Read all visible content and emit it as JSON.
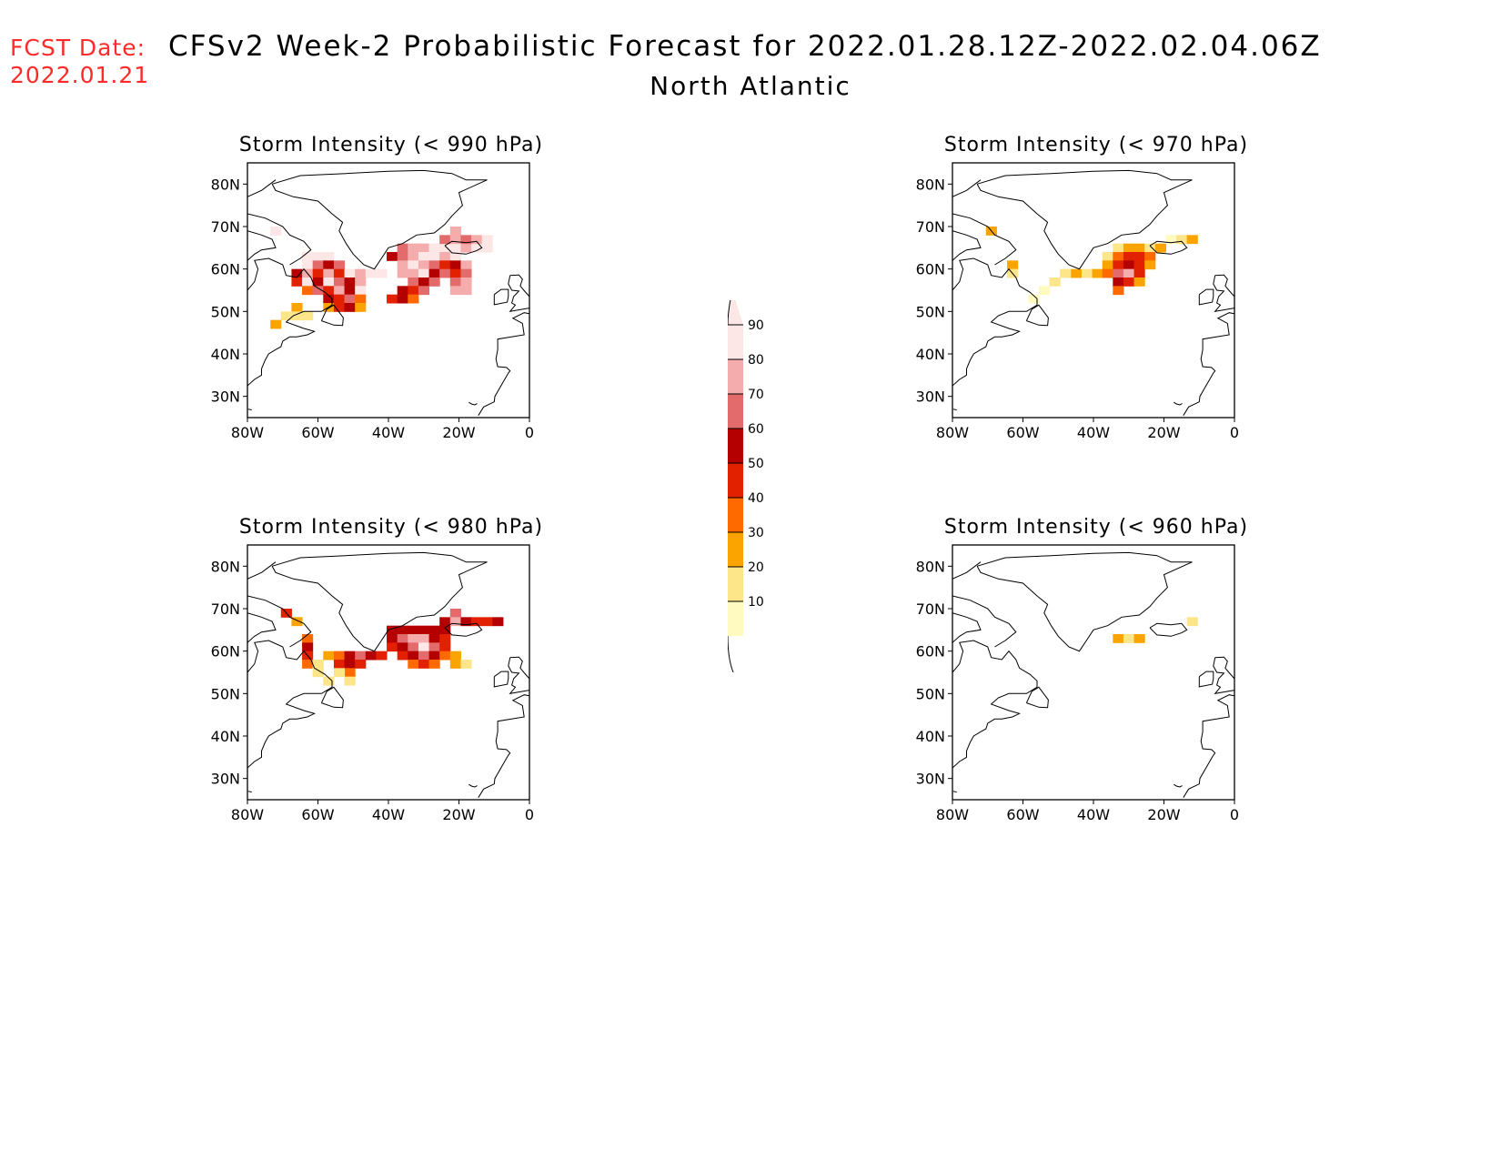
{
  "forecast_date_label": "FCST Date:",
  "forecast_date": "2022.01.21",
  "title": "CFSv2 Week-2 Probabilistic Forecast for 2022.01.28.12Z-2022.02.04.06Z",
  "region": "North Atlantic",
  "colors": [
    "#fffac0",
    "#fde58a",
    "#fba400",
    "#ff6a00",
    "#e22100",
    "#b40000",
    "#e36b6b",
    "#f4acac",
    "#fde6e6"
  ],
  "colorbar": {
    "levels": [
      "10",
      "20",
      "30",
      "40",
      "50",
      "60",
      "70",
      "80",
      "90"
    ]
  },
  "axes": {
    "lat_labels": [
      "80N",
      "70N",
      "60N",
      "50N",
      "40N",
      "30N"
    ],
    "lon_labels": [
      "80W",
      "60W",
      "40W",
      "20W",
      "0"
    ]
  },
  "panels": [
    {
      "id": "p990",
      "title": "Storm Intensity (< 990 hPa)",
      "cells": [
        [
          -63,
          63,
          9
        ],
        [
          -60,
          63,
          9
        ],
        [
          -57,
          63,
          9
        ],
        [
          -63,
          61,
          9
        ],
        [
          -60,
          61,
          7
        ],
        [
          -57,
          61,
          6
        ],
        [
          -54,
          61,
          7
        ],
        [
          -66,
          59,
          6
        ],
        [
          -63,
          59,
          8
        ],
        [
          -60,
          59,
          5
        ],
        [
          -57,
          59,
          8
        ],
        [
          -54,
          59,
          5
        ],
        [
          -51,
          59,
          9
        ],
        [
          -48,
          59,
          8
        ],
        [
          -45,
          59,
          9
        ],
        [
          -42,
          59,
          9
        ],
        [
          -66,
          57,
          5
        ],
        [
          -63,
          57,
          9
        ],
        [
          -60,
          57,
          6
        ],
        [
          -57,
          57,
          9
        ],
        [
          -54,
          57,
          7
        ],
        [
          -51,
          57,
          6
        ],
        [
          -48,
          57,
          8
        ],
        [
          -63,
          55,
          4
        ],
        [
          -60,
          55,
          7
        ],
        [
          -57,
          55,
          5
        ],
        [
          -54,
          55,
          8
        ],
        [
          -51,
          55,
          6
        ],
        [
          -48,
          55,
          9
        ],
        [
          -57,
          53,
          6
        ],
        [
          -54,
          53,
          5
        ],
        [
          -51,
          53,
          7
        ],
        [
          -48,
          53,
          4
        ],
        [
          -57,
          51,
          3
        ],
        [
          -54,
          51,
          5
        ],
        [
          -51,
          51,
          6
        ],
        [
          -48,
          51,
          3
        ],
        [
          -66,
          51,
          3
        ],
        [
          -69,
          49,
          2
        ],
        [
          -72,
          47,
          3
        ],
        [
          -63,
          49,
          2
        ],
        [
          -66,
          49,
          2
        ],
        [
          -36,
          65,
          7
        ],
        [
          -33,
          65,
          8
        ],
        [
          -30,
          65,
          8
        ],
        [
          -27,
          65,
          9
        ],
        [
          -24,
          65,
          9
        ],
        [
          -21,
          65,
          9
        ],
        [
          -18,
          65,
          8
        ],
        [
          -15,
          65,
          9
        ],
        [
          -12,
          65,
          9
        ],
        [
          -39,
          63,
          6
        ],
        [
          -36,
          63,
          7
        ],
        [
          -33,
          63,
          8
        ],
        [
          -30,
          63,
          9
        ],
        [
          -27,
          63,
          9
        ],
        [
          -24,
          63,
          8
        ],
        [
          -21,
          63,
          9
        ],
        [
          -36,
          61,
          8
        ],
        [
          -33,
          61,
          9
        ],
        [
          -30,
          61,
          8
        ],
        [
          -27,
          61,
          7
        ],
        [
          -24,
          61,
          5
        ],
        [
          -21,
          61,
          6
        ],
        [
          -18,
          61,
          8
        ],
        [
          -36,
          59,
          8
        ],
        [
          -33,
          59,
          8
        ],
        [
          -30,
          59,
          9
        ],
        [
          -27,
          59,
          6
        ],
        [
          -24,
          59,
          7
        ],
        [
          -21,
          59,
          5
        ],
        [
          -18,
          59,
          7
        ],
        [
          -33,
          57,
          7
        ],
        [
          -30,
          57,
          6
        ],
        [
          -27,
          57,
          7
        ],
        [
          -21,
          57,
          7
        ],
        [
          -18,
          57,
          8
        ],
        [
          -36,
          55,
          6
        ],
        [
          -33,
          55,
          5
        ],
        [
          -30,
          55,
          7
        ],
        [
          -21,
          55,
          8
        ],
        [
          -18,
          55,
          8
        ],
        [
          -39,
          53,
          5
        ],
        [
          -36,
          53,
          6
        ],
        [
          -33,
          53,
          4
        ],
        [
          -21,
          69,
          8
        ],
        [
          -24,
          67,
          7
        ],
        [
          -21,
          67,
          8
        ],
        [
          -18,
          67,
          7
        ],
        [
          -15,
          67,
          8
        ],
        [
          -12,
          67,
          9
        ],
        [
          -72,
          69,
          9
        ]
      ]
    },
    {
      "id": "p970",
      "title": "Storm Intensity (< 970 hPa)",
      "cells": [
        [
          -33,
          65,
          2
        ],
        [
          -30,
          65,
          3
        ],
        [
          -27,
          65,
          3
        ],
        [
          -24,
          65,
          2
        ],
        [
          -21,
          65,
          3
        ],
        [
          -36,
          63,
          2
        ],
        [
          -33,
          63,
          4
        ],
        [
          -30,
          63,
          5
        ],
        [
          -27,
          63,
          5
        ],
        [
          -24,
          63,
          4
        ],
        [
          -36,
          61,
          3
        ],
        [
          -33,
          61,
          5
        ],
        [
          -30,
          61,
          6
        ],
        [
          -27,
          61,
          5
        ],
        [
          -24,
          61,
          3
        ],
        [
          -39,
          59,
          3
        ],
        [
          -36,
          59,
          4
        ],
        [
          -33,
          59,
          7
        ],
        [
          -30,
          59,
          8
        ],
        [
          -27,
          59,
          5
        ],
        [
          -33,
          57,
          6
        ],
        [
          -30,
          57,
          5
        ],
        [
          -27,
          57,
          3
        ],
        [
          -33,
          55,
          4
        ],
        [
          -42,
          59,
          2
        ],
        [
          -45,
          59,
          3
        ],
        [
          -48,
          59,
          2
        ],
        [
          -51,
          57,
          2
        ],
        [
          -54,
          55,
          1
        ],
        [
          -57,
          53,
          1
        ],
        [
          -63,
          61,
          3
        ],
        [
          -63,
          59,
          2
        ],
        [
          -69,
          69,
          3
        ],
        [
          -18,
          67,
          1
        ],
        [
          -15,
          67,
          2
        ],
        [
          -12,
          67,
          3
        ]
      ]
    },
    {
      "id": "p980",
      "title": "Storm Intensity (< 980 hPa)",
      "cells": [
        [
          -63,
          63,
          4
        ],
        [
          -63,
          61,
          6
        ],
        [
          -63,
          59,
          5
        ],
        [
          -63,
          57,
          4
        ],
        [
          -60,
          57,
          2
        ],
        [
          -57,
          53,
          2
        ],
        [
          -60,
          55,
          2
        ],
        [
          -57,
          59,
          3
        ],
        [
          -54,
          59,
          4
        ],
        [
          -51,
          59,
          6
        ],
        [
          -48,
          59,
          7
        ],
        [
          -45,
          59,
          6
        ],
        [
          -42,
          59,
          5
        ],
        [
          -54,
          57,
          5
        ],
        [
          -51,
          57,
          6
        ],
        [
          -48,
          57,
          5
        ],
        [
          -51,
          55,
          4
        ],
        [
          -51,
          53,
          2
        ],
        [
          -54,
          55,
          2
        ],
        [
          -39,
          65,
          6
        ],
        [
          -36,
          65,
          6
        ],
        [
          -33,
          65,
          6
        ],
        [
          -30,
          65,
          6
        ],
        [
          -27,
          65,
          6
        ],
        [
          -24,
          65,
          6
        ],
        [
          -39,
          63,
          6
        ],
        [
          -36,
          63,
          7
        ],
        [
          -33,
          63,
          8
        ],
        [
          -30,
          63,
          8
        ],
        [
          -27,
          63,
          6
        ],
        [
          -24,
          63,
          5
        ],
        [
          -39,
          61,
          5
        ],
        [
          -36,
          61,
          6
        ],
        [
          -33,
          61,
          7
        ],
        [
          -30,
          61,
          9
        ],
        [
          -27,
          61,
          7
        ],
        [
          -24,
          61,
          5
        ],
        [
          -36,
          59,
          5
        ],
        [
          -33,
          59,
          6
        ],
        [
          -30,
          59,
          7
        ],
        [
          -27,
          59,
          6
        ],
        [
          -24,
          59,
          4
        ],
        [
          -21,
          59,
          3
        ],
        [
          -33,
          57,
          4
        ],
        [
          -30,
          57,
          5
        ],
        [
          -27,
          57,
          4
        ],
        [
          -21,
          57,
          3
        ],
        [
          -18,
          57,
          2
        ],
        [
          -21,
          69,
          7
        ],
        [
          -24,
          67,
          6
        ],
        [
          -21,
          67,
          8
        ],
        [
          -18,
          67,
          6
        ],
        [
          -15,
          67,
          5
        ],
        [
          -12,
          67,
          5
        ],
        [
          -9,
          67,
          6
        ],
        [
          -69,
          69,
          5
        ],
        [
          -66,
          67,
          3
        ]
      ]
    },
    {
      "id": "p960",
      "title": "Storm Intensity (< 960 hPa)",
      "cells": [
        [
          -33,
          63,
          3
        ],
        [
          -30,
          63,
          2
        ],
        [
          -27,
          63,
          3
        ],
        [
          -12,
          67,
          2
        ]
      ]
    }
  ]
}
